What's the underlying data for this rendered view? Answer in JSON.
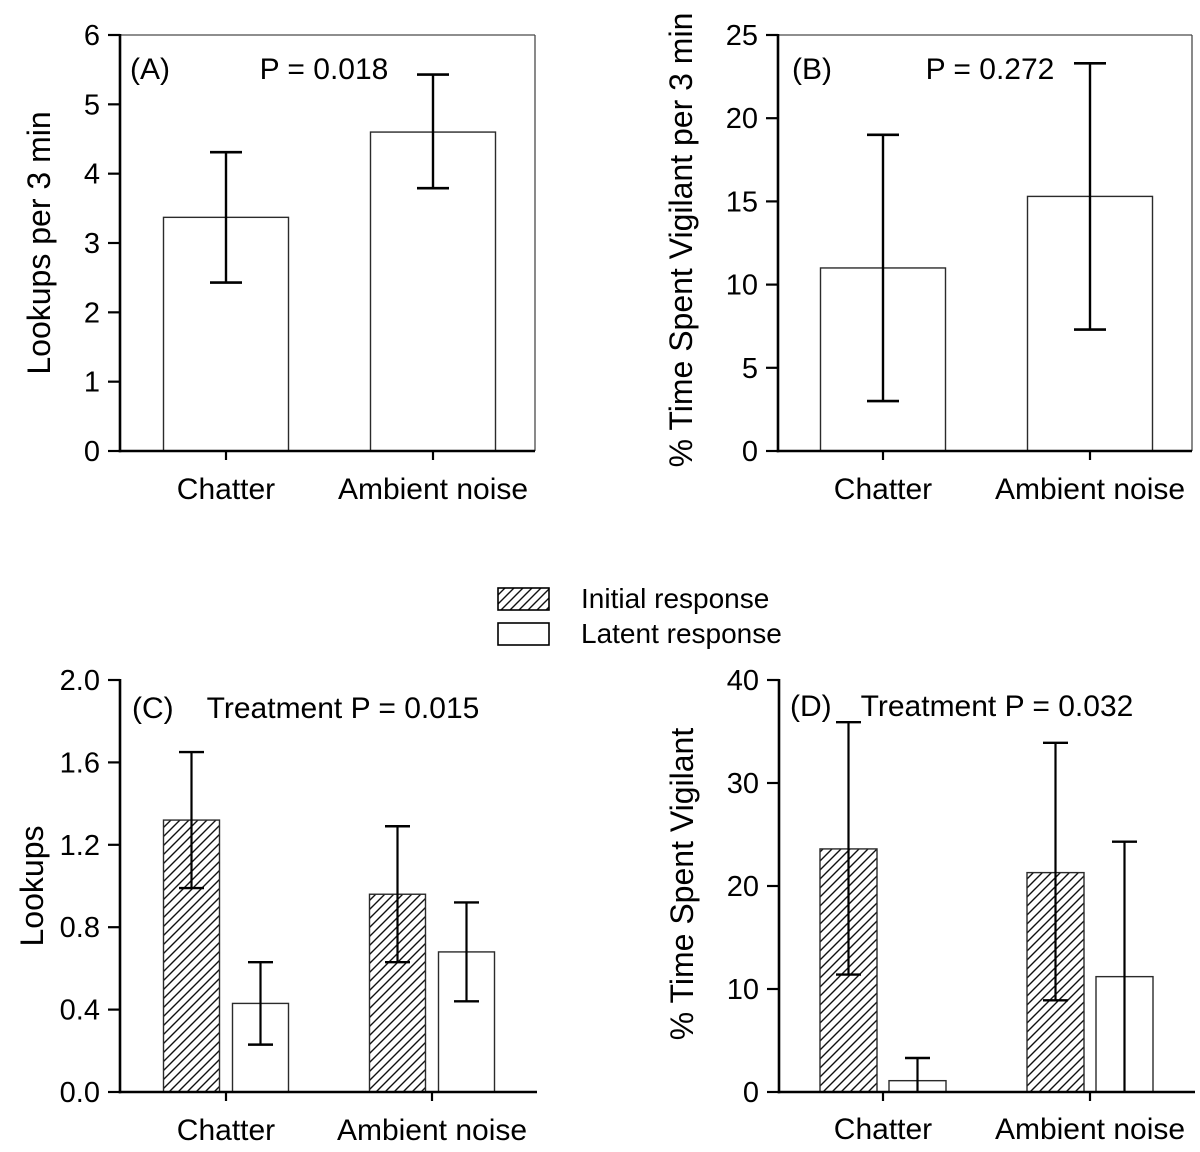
{
  "figure": {
    "background": "#ffffff",
    "ink": "#000000",
    "bar_fill": "#ffffff",
    "bar_stroke": "#2b2b2b",
    "box_stroke": "#4a4a4a"
  },
  "legend": {
    "position": "center-between-rows",
    "items": [
      {
        "label": "Initial response",
        "style": "hatched"
      },
      {
        "label": "Latent response",
        "style": "open"
      }
    ]
  },
  "chart_data": [
    {
      "type": "bar",
      "panel_label": "(A)",
      "annotation": "P = 0.018",
      "ylabel": "Lookups per 3 min",
      "xlabel": "",
      "ylim": [
        0,
        6
      ],
      "yticks": [
        0,
        1,
        2,
        3,
        4,
        5,
        6
      ],
      "ytick_labels": [
        "0",
        "1",
        "2",
        "3",
        "4",
        "5",
        "6"
      ],
      "categories": [
        "Chatter",
        "Ambient noise"
      ],
      "grid": false,
      "boxed": true,
      "series": [
        {
          "name": "",
          "style": "open",
          "values": [
            3.37,
            4.6
          ],
          "err_lo": [
            2.43,
            3.79
          ],
          "err_hi": [
            4.31,
            5.43
          ]
        }
      ]
    },
    {
      "type": "bar",
      "panel_label": "(B)",
      "annotation": "P = 0.272",
      "ylabel": "% Time Spent Vigilant per 3 min",
      "xlabel": "",
      "ylim": [
        0,
        25
      ],
      "yticks": [
        0,
        5,
        10,
        15,
        20,
        25
      ],
      "ytick_labels": [
        "0",
        "5",
        "10",
        "15",
        "20",
        "25"
      ],
      "categories": [
        "Chatter",
        "Ambient noise"
      ],
      "grid": false,
      "boxed": true,
      "series": [
        {
          "name": "",
          "style": "open",
          "values": [
            11.0,
            15.3
          ],
          "err_lo": [
            3.0,
            7.3
          ],
          "err_hi": [
            19.0,
            23.3
          ]
        }
      ]
    },
    {
      "type": "bar",
      "panel_label": "(C)",
      "annotation": "Treatment P = 0.015",
      "ylabel": "Lookups",
      "xlabel": "",
      "ylim": [
        0,
        2
      ],
      "yticks": [
        0,
        0.4,
        0.8,
        1.2,
        1.6,
        2
      ],
      "ytick_labels": [
        "0.0",
        "0.4",
        "0.8",
        "1.2",
        "1.6",
        "2.0"
      ],
      "categories": [
        "Chatter",
        "Ambient noise"
      ],
      "grid": false,
      "boxed": false,
      "series": [
        {
          "name": "Initial response",
          "style": "hatched",
          "values": [
            1.32,
            0.96
          ],
          "err_lo": [
            0.99,
            0.63
          ],
          "err_hi": [
            1.65,
            1.29
          ]
        },
        {
          "name": "Latent response",
          "style": "open",
          "values": [
            0.43,
            0.68
          ],
          "err_lo": [
            0.23,
            0.44
          ],
          "err_hi": [
            0.63,
            0.92
          ]
        }
      ]
    },
    {
      "type": "bar",
      "panel_label": "(D)",
      "annotation": "Treatment P = 0.032",
      "ylabel": "% Time Spent Vigilant",
      "xlabel": "",
      "ylim": [
        0,
        40
      ],
      "yticks": [
        0,
        10,
        20,
        30,
        40
      ],
      "ytick_labels": [
        "0",
        "10",
        "20",
        "30",
        "40"
      ],
      "categories": [
        "Chatter",
        "Ambient noise"
      ],
      "grid": false,
      "boxed": false,
      "series": [
        {
          "name": "Initial response",
          "style": "hatched",
          "values": [
            23.6,
            21.3
          ],
          "err_lo": [
            11.4,
            8.9
          ],
          "err_hi": [
            35.9,
            33.9
          ]
        },
        {
          "name": "Latent response",
          "style": "open",
          "values": [
            1.1,
            11.2
          ],
          "err_lo": [
            -1.1,
            -1.9
          ],
          "err_hi": [
            3.3,
            24.3
          ]
        }
      ]
    }
  ]
}
